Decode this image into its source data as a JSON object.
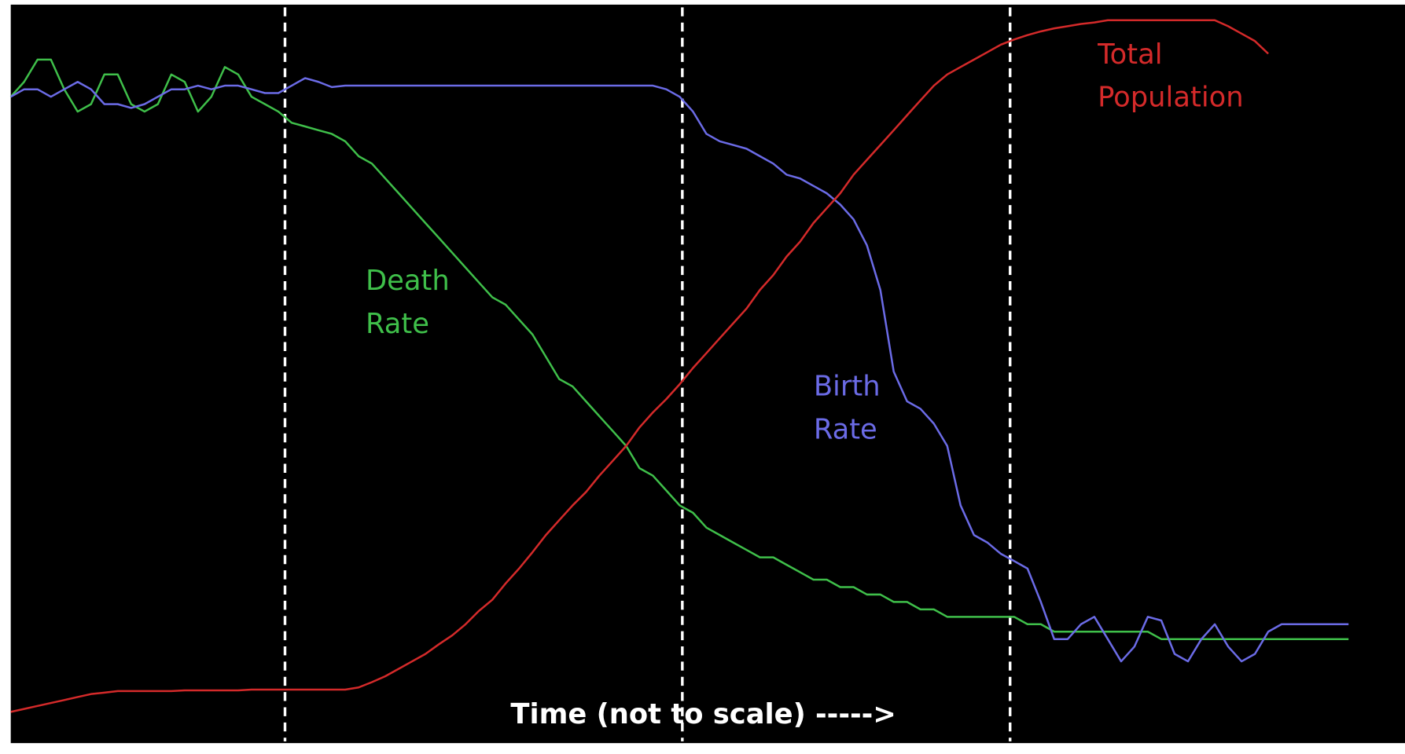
{
  "chart_data": {
    "type": "line",
    "x_label": "Time (not to scale) ----->",
    "xlim": [
      0,
      100
    ],
    "ylim": [
      0,
      100
    ],
    "stage_boundaries": [
      20.5,
      50.2,
      74.7
    ],
    "x": [
      0,
      1,
      2,
      3,
      4,
      5,
      6,
      7,
      8,
      9,
      10,
      11,
      12,
      13,
      14,
      15,
      16,
      17,
      18,
      19,
      20,
      21,
      22,
      23,
      24,
      25,
      26,
      27,
      28,
      29,
      30,
      31,
      32,
      33,
      34,
      35,
      36,
      37,
      38,
      39,
      40,
      41,
      42,
      43,
      44,
      45,
      46,
      47,
      48,
      49,
      50,
      51,
      52,
      53,
      54,
      55,
      56,
      57,
      58,
      59,
      60,
      61,
      62,
      63,
      64,
      65,
      66,
      67,
      68,
      69,
      70,
      71,
      72,
      73,
      74,
      75,
      76,
      77,
      78,
      79,
      80,
      81,
      82,
      83,
      84,
      85,
      86,
      87,
      88,
      89,
      90,
      91,
      92,
      93,
      94,
      95,
      96,
      97,
      98,
      99,
      100
    ],
    "series": [
      {
        "name": "Death Rate",
        "color": "#3fbf4a",
        "values": [
          87,
          89,
          92,
          92,
          88,
          85,
          86,
          90,
          90,
          86,
          85,
          86,
          90,
          89,
          85,
          87,
          91,
          90,
          87,
          86,
          85,
          83.5,
          83,
          82.5,
          82,
          81,
          79,
          78,
          76,
          74,
          72,
          70,
          68,
          66,
          64,
          62,
          60,
          59,
          57,
          55,
          52,
          49,
          48,
          46,
          44,
          42,
          40,
          37,
          36,
          34,
          32,
          31,
          29,
          28,
          27,
          26,
          25,
          25,
          24,
          23,
          22,
          22,
          21,
          21,
          20,
          20,
          19,
          19,
          18,
          18,
          17,
          17,
          17,
          17,
          17,
          17,
          16,
          16,
          15,
          15,
          15,
          15,
          15,
          15,
          15,
          15,
          14,
          14,
          14,
          14,
          14,
          14,
          14,
          14,
          14,
          14,
          14,
          14,
          14,
          14,
          14
        ]
      },
      {
        "name": "Birth Rate",
        "color": "#6b6be6",
        "values": [
          87,
          88,
          88,
          87,
          88,
          89,
          88,
          86,
          86,
          85.5,
          86,
          87,
          88,
          88,
          88.5,
          88,
          88.5,
          88.5,
          88,
          87.5,
          87.5,
          88.5,
          89.5,
          89,
          88.3,
          88.5,
          88.5,
          88.5,
          88.5,
          88.5,
          88.5,
          88.5,
          88.5,
          88.5,
          88.5,
          88.5,
          88.5,
          88.5,
          88.5,
          88.5,
          88.5,
          88.5,
          88.5,
          88.5,
          88.5,
          88.5,
          88.5,
          88.5,
          88.5,
          88,
          87,
          85,
          82,
          81,
          80.5,
          80,
          79,
          78,
          76.5,
          76,
          75,
          74,
          72.5,
          70.5,
          67,
          61,
          50,
          46,
          45,
          43,
          40,
          32,
          28,
          27,
          25.5,
          24.5,
          23.5,
          19,
          14,
          14,
          16,
          17,
          14,
          11,
          13,
          17,
          16.5,
          12,
          11,
          14,
          16,
          13,
          11,
          12,
          15,
          16,
          16,
          16,
          16,
          16,
          16
        ]
      },
      {
        "name": "Total Population",
        "color": "#d42a2a",
        "values": [
          4.2,
          4.6,
          5,
          5.4,
          5.8,
          6.2,
          6.6,
          6.8,
          7,
          7,
          7,
          7,
          7,
          7.1,
          7.1,
          7.1,
          7.1,
          7.1,
          7.2,
          7.2,
          7.2,
          7.2,
          7.2,
          7.2,
          7.2,
          7.2,
          7.5,
          8.2,
          9,
          10,
          11,
          12,
          13.3,
          14.5,
          16,
          17.8,
          19.3,
          21.5,
          23.5,
          25.7,
          28,
          30,
          32,
          33.8,
          36,
          38,
          40,
          42.5,
          44.5,
          46.3,
          48.3,
          50.5,
          52.5,
          54.5,
          56.5,
          58.5,
          61,
          63,
          65.5,
          67.5,
          70,
          72,
          74,
          76.5,
          78.5,
          80.5,
          82.5,
          84.5,
          86.5,
          88.5,
          90,
          91,
          92,
          93,
          94,
          94.7,
          95.3,
          95.8,
          96.2,
          96.5,
          96.8,
          97,
          97.3,
          97.3,
          97.3,
          97.3,
          97.3,
          97.3,
          97.3,
          97.3,
          97.3,
          96.5,
          95.5,
          94.5,
          92.8,
          null,
          null,
          null,
          null,
          null,
          null
        ]
      }
    ]
  }
}
